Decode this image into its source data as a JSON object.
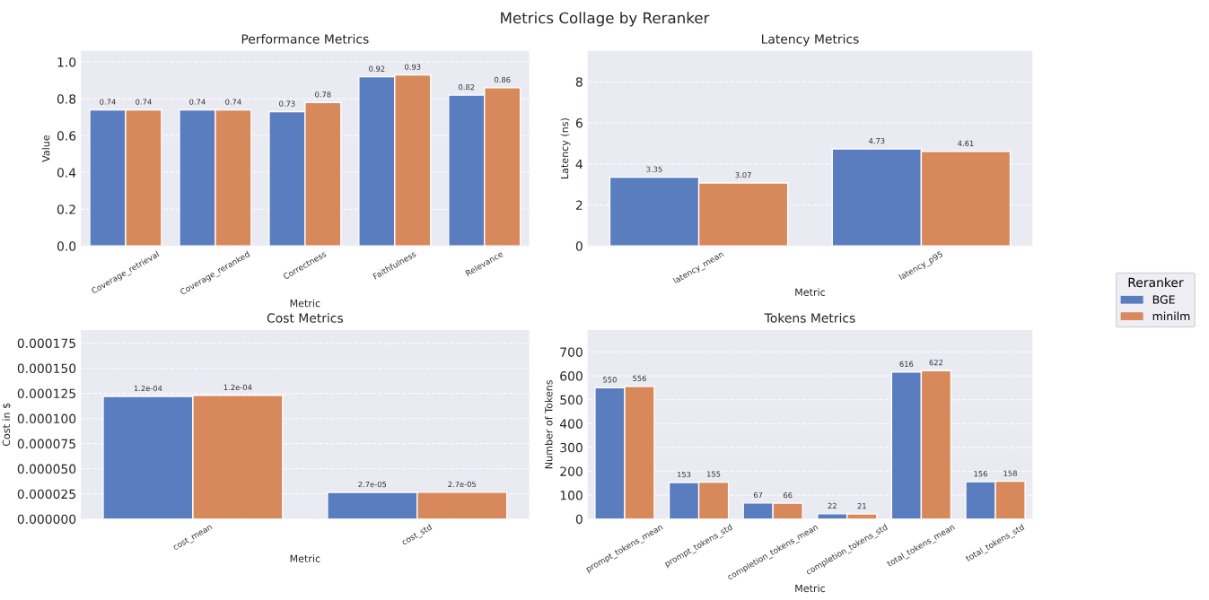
{
  "chart_data": [
    {
      "type": "bar",
      "title": "Performance Metrics",
      "xlabel": "Metric",
      "ylabel": "Value",
      "legend_title": "Reranker",
      "legend": "right",
      "annotations": [
        "Metrics Collage by Reranker"
      ],
      "categories": [
        "Coverage_retrieval",
        "Coverage_reranked",
        "Correctness",
        "Faithfulness",
        "Relevance"
      ],
      "series": [
        {
          "name": "BGE",
          "color": "#597dbf",
          "values": [
            0.74,
            0.74,
            0.73,
            0.92,
            0.82
          ]
        },
        {
          "name": "minilm",
          "color": "#d8895c",
          "values": [
            0.74,
            0.74,
            0.78,
            0.93,
            0.86
          ]
        }
      ],
      "ylim": [
        0,
        1.06
      ],
      "yticks": [
        {
          "value": 0,
          "label": "0.0"
        },
        0.2,
        0.4,
        0.6,
        0.8,
        {
          "value": 1,
          "label": "1.0"
        }
      ],
      "grid": "y",
      "data_labels": true
    },
    {
      "type": "bar",
      "title": "Latency Metrics",
      "xlabel": "Metric",
      "ylabel": "Latency (ns)",
      "categories": [
        "latency_mean",
        "latency_p95"
      ],
      "series": [
        {
          "color": "#597dbf",
          "values": [
            3.35,
            4.73
          ]
        },
        {
          "color": "#d8895c",
          "values": [
            3.07,
            4.61
          ]
        }
      ],
      "ylim": [
        0,
        9.5
      ],
      "yticks": [
        0,
        2,
        4,
        6,
        8
      ],
      "grid": "y",
      "data_labels": true
    },
    {
      "type": "bar",
      "title": "Cost Metrics",
      "xlabel": "Metric",
      "ylabel": "Cost in $",
      "categories": [
        "cost_mean",
        "cost_std"
      ],
      "series": [
        {
          "color": "#597dbf",
          "values": [
            0.000122,
            2.65e-05
          ],
          "value_labels": [
            "1.2e-04",
            "2.7e-05"
          ]
        },
        {
          "color": "#d8895c",
          "values": [
            0.000123,
            2.66e-05
          ],
          "value_labels": [
            "1.2e-04",
            "2.7e-05"
          ]
        }
      ],
      "ylim": [
        0,
        0.000188
      ],
      "yticks": [
        {
          "value": 0,
          "label": "0.000000"
        },
        {
          "value": 2.5e-05,
          "label": "0.000025"
        },
        {
          "value": 5e-05,
          "label": "0.000050"
        },
        {
          "value": 7.5e-05,
          "label": "0.000075"
        },
        {
          "value": 0.0001,
          "label": "0.000100"
        },
        {
          "value": 0.000125,
          "label": "0.000125"
        },
        {
          "value": 0.00015,
          "label": "0.000150"
        },
        {
          "value": 0.000175,
          "label": "0.000175"
        }
      ],
      "grid": "y"
    },
    {
      "type": "bar",
      "title": "Tokens Metrics",
      "xlabel": "Metric",
      "ylabel": "Number of Tokens",
      "categories": [
        "prompt_tokens_mean",
        "prompt_tokens_std",
        "completion_tokens_mean",
        "completion_tokens_std",
        "total_tokens_mean",
        "total_tokens_std"
      ],
      "series": [
        {
          "color": "#597dbf",
          "values": [
            550,
            153,
            67,
            22,
            616,
            156
          ]
        },
        {
          "color": "#d8895c",
          "values": [
            556,
            155,
            66,
            21,
            622,
            158
          ]
        }
      ],
      "ylim": [
        0,
        792
      ],
      "yticks": [
        0,
        100,
        200,
        300,
        400,
        500,
        600,
        700
      ],
      "grid": "y",
      "data_labels": true
    }
  ]
}
